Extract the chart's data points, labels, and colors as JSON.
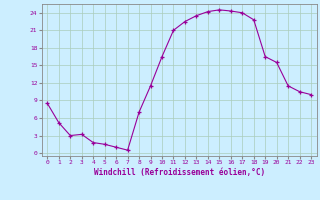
{
  "x": [
    0,
    1,
    2,
    3,
    4,
    5,
    6,
    7,
    8,
    9,
    10,
    11,
    12,
    13,
    14,
    15,
    16,
    17,
    18,
    19,
    20,
    21,
    22,
    23
  ],
  "y": [
    8.5,
    5.2,
    3.0,
    3.2,
    1.8,
    1.5,
    1.0,
    0.5,
    7.0,
    11.5,
    16.5,
    21.0,
    22.5,
    23.5,
    24.2,
    24.5,
    24.3,
    24.0,
    22.8,
    16.5,
    15.5,
    11.5,
    10.5,
    10.0
  ],
  "xlabel": "Windchill (Refroidissement éolien,°C)",
  "xlim": [
    -0.5,
    23.5
  ],
  "ylim": [
    -0.5,
    25.5
  ],
  "yticks": [
    0,
    3,
    6,
    9,
    12,
    15,
    18,
    21,
    24
  ],
  "xticks": [
    0,
    1,
    2,
    3,
    4,
    5,
    6,
    7,
    8,
    9,
    10,
    11,
    12,
    13,
    14,
    15,
    16,
    17,
    18,
    19,
    20,
    21,
    22,
    23
  ],
  "line_color": "#990099",
  "marker": "+",
  "background_color": "#cceeff",
  "grid_color": "#aaccbb",
  "tick_label_color": "#990099",
  "axis_label_color": "#990099",
  "figsize": [
    3.2,
    2.0
  ],
  "dpi": 100
}
